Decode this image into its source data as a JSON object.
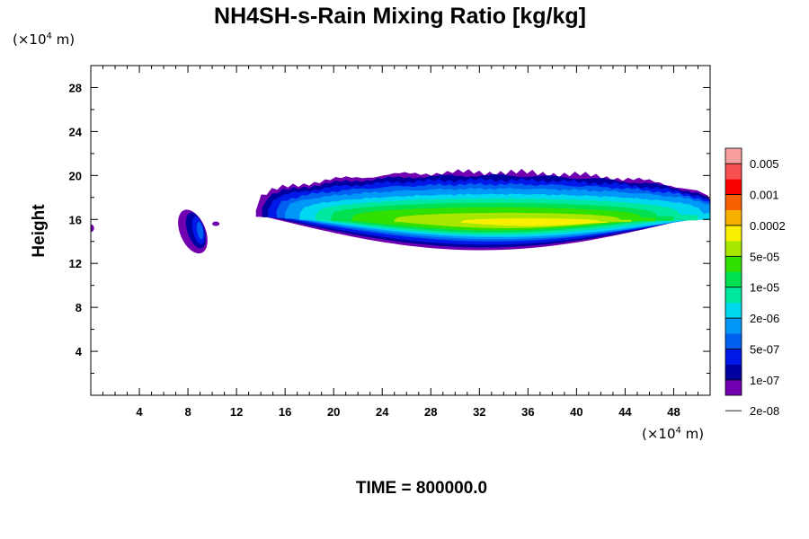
{
  "chart_data": {
    "type": "heatmap",
    "title": "NH4SH-s-Rain Mixing Ratio [kg/kg]",
    "ylabel": "Height",
    "x_unit": {
      "prefix": "(×10",
      "exp": "4",
      "suffix": " m)"
    },
    "y_unit": {
      "prefix": "(×10",
      "exp": "4",
      "suffix": " m)"
    },
    "xlim": [
      0,
      51
    ],
    "ylim": [
      0,
      30
    ],
    "x_ticks": [
      "4",
      "8",
      "12",
      "16",
      "20",
      "24",
      "28",
      "32",
      "36",
      "40",
      "44",
      "48"
    ],
    "y_ticks": [
      "4",
      "8",
      "12",
      "16",
      "20",
      "24",
      "28"
    ],
    "footer": "TIME = 800000.0",
    "colorbar": {
      "labels": [
        "0.005",
        "0.001",
        "0.0002",
        "5e-05",
        "1e-05",
        "2e-06",
        "5e-07",
        "1e-07",
        "2e-08"
      ],
      "colors": [
        "#7000b0",
        "#0000a0",
        "#0018e8",
        "#0060f0",
        "#0098f8",
        "#00d8f0",
        "#00e8a0",
        "#00e050",
        "#30e000",
        "#a8e800",
        "#f8f000",
        "#f8b000",
        "#f86000",
        "#f80000",
        "#f85050",
        "#f8a0a0"
      ]
    },
    "features": [
      {
        "name": "small cell",
        "x_range": [
          7.5,
          10.5
        ],
        "y_range": [
          14.5,
          17.8
        ],
        "max_level": "1e-07"
      },
      {
        "name": "main cloud band",
        "x_range": [
          13.5,
          51
        ],
        "y_range": [
          13.5,
          20.2
        ],
        "max_level": "0.0002"
      }
    ]
  }
}
